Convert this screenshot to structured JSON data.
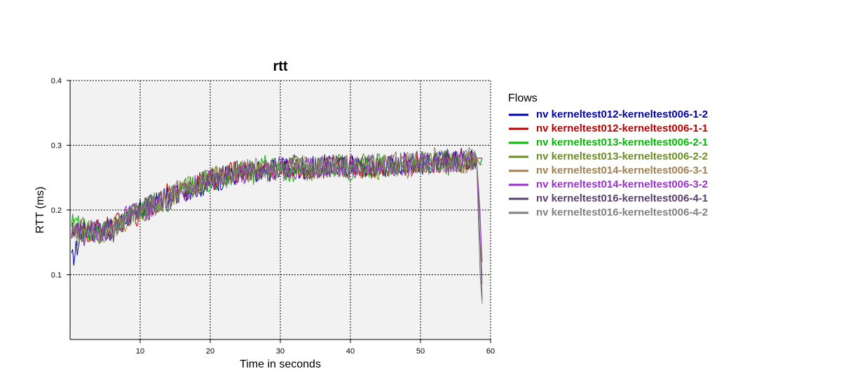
{
  "chart_data": {
    "type": "line",
    "title": "rtt",
    "xlabel": "Time in seconds",
    "ylabel": "RTT (ms)",
    "xlim": [
      0,
      60
    ],
    "ylim": [
      0,
      0.4
    ],
    "xticks": [
      10,
      20,
      30,
      40,
      50,
      60
    ],
    "xtick_labels": [
      "10",
      "20",
      "30",
      "40",
      "50",
      "60"
    ],
    "yticks": [
      0.1,
      0.2,
      0.3,
      0.4
    ],
    "ytick_labels": [
      "0.1",
      "0.2",
      "0.3",
      "0.4"
    ],
    "grid": true,
    "legend_title": "Flows",
    "legend_position": "right",
    "series": [
      {
        "name": "nv kerneltest012-kerneltest006-1-2",
        "color": "#0000aa",
        "x": [
          0.2,
          2,
          4,
          6,
          8,
          10,
          12,
          14,
          16,
          18,
          20,
          22,
          24,
          26,
          28,
          30,
          32,
          34,
          36,
          38,
          40,
          42,
          44,
          46,
          48,
          50,
          52,
          54,
          56,
          58,
          58.5,
          58.8
        ],
        "y": [
          0.12,
          0.17,
          0.165,
          0.17,
          0.19,
          0.2,
          0.21,
          0.22,
          0.23,
          0.235,
          0.24,
          0.25,
          0.255,
          0.26,
          0.26,
          0.265,
          0.26,
          0.265,
          0.27,
          0.265,
          0.27,
          0.265,
          0.27,
          0.27,
          0.275,
          0.27,
          0.275,
          0.275,
          0.28,
          0.28,
          0.27,
          0.28
        ]
      },
      {
        "name": "nv kerneltest012-kerneltest006-1-1",
        "color": "#bb0000",
        "x": [
          0.2,
          2,
          4,
          6,
          8,
          10,
          12,
          14,
          16,
          18,
          20,
          22,
          24,
          26,
          28,
          30,
          32,
          34,
          36,
          38,
          40,
          42,
          44,
          46,
          48,
          50,
          52,
          54,
          56,
          58,
          58.5,
          58.8
        ],
        "y": [
          0.17,
          0.16,
          0.17,
          0.175,
          0.185,
          0.195,
          0.21,
          0.225,
          0.23,
          0.24,
          0.245,
          0.255,
          0.26,
          0.26,
          0.265,
          0.26,
          0.265,
          0.26,
          0.27,
          0.265,
          0.27,
          0.265,
          0.265,
          0.27,
          0.27,
          0.275,
          0.27,
          0.275,
          0.275,
          0.28,
          0.28,
          0.28
        ]
      },
      {
        "name": "nv kerneltest013-kerneltest006-2-1",
        "color": "#00bb00",
        "x": [
          0.2,
          2,
          4,
          6,
          8,
          10,
          12,
          14,
          16,
          18,
          20,
          22,
          24,
          26,
          28,
          30,
          32,
          34,
          36,
          38,
          40,
          42,
          44,
          46,
          48,
          50,
          52,
          54,
          56,
          58,
          58.5,
          58.8
        ],
        "y": [
          0.18,
          0.17,
          0.165,
          0.17,
          0.19,
          0.2,
          0.21,
          0.215,
          0.235,
          0.24,
          0.245,
          0.25,
          0.26,
          0.255,
          0.27,
          0.26,
          0.26,
          0.27,
          0.265,
          0.27,
          0.26,
          0.265,
          0.27,
          0.265,
          0.27,
          0.275,
          0.27,
          0.275,
          0.28,
          0.28,
          0.27,
          0.28
        ]
      },
      {
        "name": "nv kerneltest013-kerneltest006-2-2",
        "color": "#6b8e23",
        "x": [
          0.2,
          2,
          4,
          6,
          8,
          10,
          12,
          14,
          16,
          18,
          20,
          22,
          24,
          26,
          28,
          30,
          32,
          34,
          36,
          38,
          40,
          42,
          44,
          46,
          48,
          50,
          52,
          54,
          56,
          58,
          58.5,
          58.8
        ],
        "y": [
          0.16,
          0.165,
          0.16,
          0.17,
          0.185,
          0.195,
          0.205,
          0.22,
          0.23,
          0.24,
          0.25,
          0.255,
          0.255,
          0.265,
          0.26,
          0.265,
          0.27,
          0.26,
          0.265,
          0.27,
          0.265,
          0.27,
          0.26,
          0.275,
          0.27,
          0.27,
          0.28,
          0.27,
          0.275,
          0.28,
          0.27,
          0.27
        ]
      },
      {
        "name": "nv kerneltest014-kerneltest006-3-1",
        "color": "#a08050",
        "x": [
          0.2,
          2,
          4,
          6,
          8,
          10,
          12,
          14,
          16,
          18,
          20,
          22,
          24,
          26,
          28,
          30,
          32,
          34,
          36,
          38,
          40,
          42,
          44,
          46,
          48,
          50,
          52,
          54,
          56,
          58,
          58.5,
          58.8
        ],
        "y": [
          0.17,
          0.175,
          0.165,
          0.165,
          0.18,
          0.2,
          0.21,
          0.22,
          0.24,
          0.235,
          0.25,
          0.255,
          0.26,
          0.26,
          0.27,
          0.26,
          0.265,
          0.265,
          0.26,
          0.27,
          0.27,
          0.26,
          0.27,
          0.27,
          0.265,
          0.27,
          0.28,
          0.275,
          0.27,
          0.28,
          0.2,
          0.085
        ]
      },
      {
        "name": "nv kerneltest014-kerneltest006-3-2",
        "color": "#9932cc",
        "x": [
          0.2,
          2,
          4,
          6,
          8,
          10,
          12,
          14,
          16,
          18,
          20,
          22,
          24,
          26,
          28,
          30,
          32,
          34,
          36,
          38,
          40,
          42,
          44,
          46,
          48,
          50,
          52,
          54,
          56,
          58,
          58.5,
          58.8
        ],
        "y": [
          0.175,
          0.16,
          0.17,
          0.17,
          0.19,
          0.195,
          0.205,
          0.22,
          0.225,
          0.24,
          0.245,
          0.25,
          0.255,
          0.26,
          0.26,
          0.27,
          0.26,
          0.265,
          0.27,
          0.26,
          0.27,
          0.265,
          0.27,
          0.27,
          0.27,
          0.27,
          0.275,
          0.27,
          0.28,
          0.275,
          0.19,
          0.12
        ]
      },
      {
        "name": "nv kerneltest016-kerneltest006-4-1",
        "color": "#5a3f6e",
        "x": [
          0.2,
          2,
          4,
          6,
          8,
          10,
          12,
          14,
          16,
          18,
          20,
          22,
          24,
          26,
          28,
          30,
          32,
          34,
          36,
          38,
          40,
          42,
          44,
          46,
          48,
          50,
          52,
          54,
          56,
          58,
          58.5,
          58.8
        ],
        "y": [
          0.165,
          0.17,
          0.17,
          0.165,
          0.185,
          0.2,
          0.21,
          0.215,
          0.23,
          0.24,
          0.245,
          0.255,
          0.26,
          0.26,
          0.26,
          0.265,
          0.27,
          0.265,
          0.265,
          0.27,
          0.265,
          0.27,
          0.265,
          0.27,
          0.27,
          0.275,
          0.27,
          0.28,
          0.275,
          0.28,
          0.15,
          0.06
        ]
      },
      {
        "name": "nv kerneltest016-kerneltest006-4-2",
        "color": "#808080",
        "x": [
          0.2,
          2,
          4,
          6,
          8,
          10,
          12,
          14,
          16,
          18,
          20,
          22,
          24,
          26,
          28,
          30,
          32,
          34,
          36,
          38,
          40,
          42,
          44,
          46,
          48,
          50,
          52,
          54,
          56,
          58,
          58.5,
          58.8
        ],
        "y": [
          0.17,
          0.165,
          0.165,
          0.17,
          0.19,
          0.2,
          0.205,
          0.22,
          0.23,
          0.235,
          0.25,
          0.25,
          0.26,
          0.265,
          0.26,
          0.26,
          0.265,
          0.27,
          0.27,
          0.265,
          0.27,
          0.27,
          0.27,
          0.265,
          0.275,
          0.27,
          0.275,
          0.275,
          0.28,
          0.28,
          0.1,
          0.055
        ]
      }
    ]
  }
}
